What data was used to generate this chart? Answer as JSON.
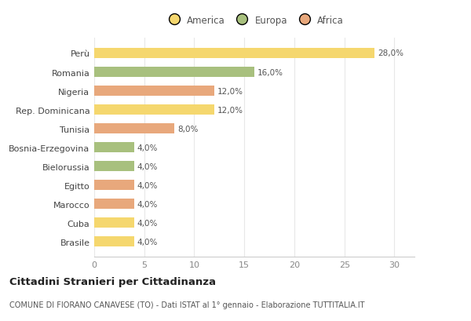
{
  "categories": [
    "Brasile",
    "Cuba",
    "Marocco",
    "Egitto",
    "Bielorussia",
    "Bosnia-Erzegovina",
    "Tunisia",
    "Rep. Dominicana",
    "Nigeria",
    "Romania",
    "Perù"
  ],
  "values": [
    4.0,
    4.0,
    4.0,
    4.0,
    4.0,
    4.0,
    8.0,
    12.0,
    12.0,
    16.0,
    28.0
  ],
  "colors": [
    "#F5D76E",
    "#F5D76E",
    "#E8A87C",
    "#E8A87C",
    "#A8C07E",
    "#A8C07E",
    "#E8A87C",
    "#F5D76E",
    "#E8A87C",
    "#A8C07E",
    "#F5D76E"
  ],
  "legend_order": [
    "America",
    "Europa",
    "Africa"
  ],
  "legend_colors": {
    "America": "#F5D76E",
    "Europa": "#A8C07E",
    "Africa": "#E8A87C"
  },
  "labels": [
    "4,0%",
    "4,0%",
    "4,0%",
    "4,0%",
    "4,0%",
    "4,0%",
    "8,0%",
    "12,0%",
    "12,0%",
    "16,0%",
    "28,0%"
  ],
  "title": "Cittadini Stranieri per Cittadinanza",
  "subtitle": "COMUNE DI FIORANO CANAVESE (TO) - Dati ISTAT al 1° gennaio - Elaborazione TUTTITALIA.IT",
  "xlim": [
    0,
    32
  ],
  "xticks": [
    0,
    5,
    10,
    15,
    20,
    25,
    30
  ],
  "background_color": "#FFFFFF",
  "grid_color": "#E8E8E8",
  "bar_height": 0.55,
  "label_fontsize": 7.5,
  "ytick_fontsize": 8,
  "xtick_fontsize": 8,
  "legend_fontsize": 8.5,
  "title_fontsize": 9.5,
  "subtitle_fontsize": 7
}
